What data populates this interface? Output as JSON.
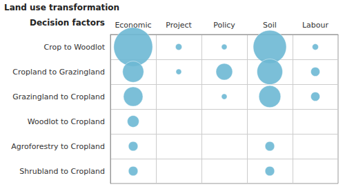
{
  "chart_data": {
    "type": "bubble",
    "x": [
      "Economic",
      "Project",
      "Policy",
      "Soil",
      "Labour"
    ],
    "y": [
      "Crop to Woodlot",
      "Cropland to Grazingland",
      "Grazingland to Cropland",
      "Woodlot to Cropland",
      "Agroforestry to Cropland",
      "Shrubland to Cropland"
    ],
    "x_label": "Decision factors",
    "y_label": "Land use transformation",
    "sizes": [
      [
        2200,
        60,
        45,
        1600,
        55
      ],
      [
        650,
        45,
        400,
        950,
        120
      ],
      [
        550,
        0,
        45,
        700,
        120
      ],
      [
        200,
        0,
        0,
        0,
        0
      ],
      [
        130,
        0,
        0,
        130,
        0
      ],
      [
        130,
        0,
        0,
        130,
        0
      ]
    ],
    "color": "#6DB8D4",
    "grid": true,
    "tick_labels": true
  }
}
